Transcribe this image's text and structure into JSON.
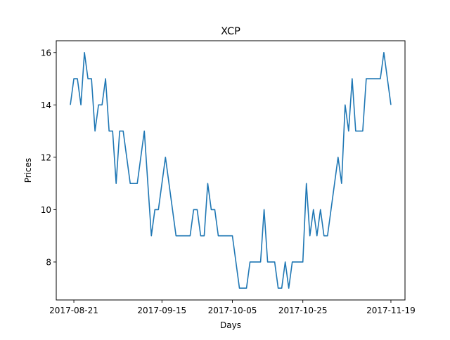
{
  "chart_data": {
    "type": "line",
    "title": "XCP",
    "xlabel": "Days",
    "ylabel": "Prices",
    "xlim": [
      "2017-08-16",
      "2017-11-23"
    ],
    "ylim": [
      6.55,
      16.45
    ],
    "grid": false,
    "x_ticks": [
      "2017-08-21",
      "2017-09-15",
      "2017-10-05",
      "2017-10-25",
      "2017-11-19"
    ],
    "y_ticks": [
      8,
      10,
      12,
      14,
      16
    ],
    "color": "#1f77b4",
    "series": [
      {
        "x": [
          "2017-08-20",
          "2017-08-21",
          "2017-08-22",
          "2017-08-23",
          "2017-08-24",
          "2017-08-25",
          "2017-08-26",
          "2017-08-27",
          "2017-08-28",
          "2017-08-29",
          "2017-08-30",
          "2017-08-31",
          "2017-09-01",
          "2017-09-02",
          "2017-09-03",
          "2017-09-04",
          "2017-09-05",
          "2017-09-06",
          "2017-09-07",
          "2017-09-08",
          "2017-09-09",
          "2017-09-10",
          "2017-09-11",
          "2017-09-12",
          "2017-09-13",
          "2017-09-14",
          "2017-09-15",
          "2017-09-16",
          "2017-09-17",
          "2017-09-18",
          "2017-09-19",
          "2017-09-20",
          "2017-09-21",
          "2017-09-22",
          "2017-09-23",
          "2017-09-24",
          "2017-09-25",
          "2017-09-26",
          "2017-09-27",
          "2017-09-28",
          "2017-09-29",
          "2017-09-30",
          "2017-10-01",
          "2017-10-02",
          "2017-10-03",
          "2017-10-04",
          "2017-10-05",
          "2017-10-06",
          "2017-10-07",
          "2017-10-08",
          "2017-10-09",
          "2017-10-10",
          "2017-10-11",
          "2017-10-12",
          "2017-10-13",
          "2017-10-14",
          "2017-10-15",
          "2017-10-16",
          "2017-10-17",
          "2017-10-18",
          "2017-10-19",
          "2017-10-20",
          "2017-10-21",
          "2017-10-22",
          "2017-10-23",
          "2017-10-24",
          "2017-10-25",
          "2017-10-26",
          "2017-10-27",
          "2017-10-28",
          "2017-10-29",
          "2017-10-30",
          "2017-10-31",
          "2017-11-01",
          "2017-11-02",
          "2017-11-03",
          "2017-11-04",
          "2017-11-05",
          "2017-11-06",
          "2017-11-07",
          "2017-11-08",
          "2017-11-09",
          "2017-11-10",
          "2017-11-11",
          "2017-11-12",
          "2017-11-13",
          "2017-11-14",
          "2017-11-15",
          "2017-11-16",
          "2017-11-17",
          "2017-11-18",
          "2017-11-19"
        ],
        "y": [
          14,
          15,
          15,
          14,
          16,
          15,
          15,
          13,
          14,
          14,
          15,
          13,
          13,
          11,
          13,
          13,
          12,
          11,
          11,
          11,
          12,
          13,
          11,
          9,
          10,
          10,
          11,
          12,
          11,
          10,
          9,
          9,
          9,
          9,
          9,
          10,
          10,
          9,
          9,
          11,
          10,
          10,
          9,
          9,
          9,
          9,
          9,
          8,
          7,
          7,
          7,
          8,
          8,
          8,
          8,
          10,
          8,
          8,
          8,
          7,
          7,
          8,
          7,
          8,
          8,
          8,
          8,
          11,
          9,
          10,
          9,
          10,
          9,
          9,
          10,
          11,
          12,
          11,
          14,
          13,
          15,
          13,
          13,
          13,
          15,
          15,
          15,
          15,
          15,
          16,
          15,
          14
        ]
      }
    ]
  }
}
